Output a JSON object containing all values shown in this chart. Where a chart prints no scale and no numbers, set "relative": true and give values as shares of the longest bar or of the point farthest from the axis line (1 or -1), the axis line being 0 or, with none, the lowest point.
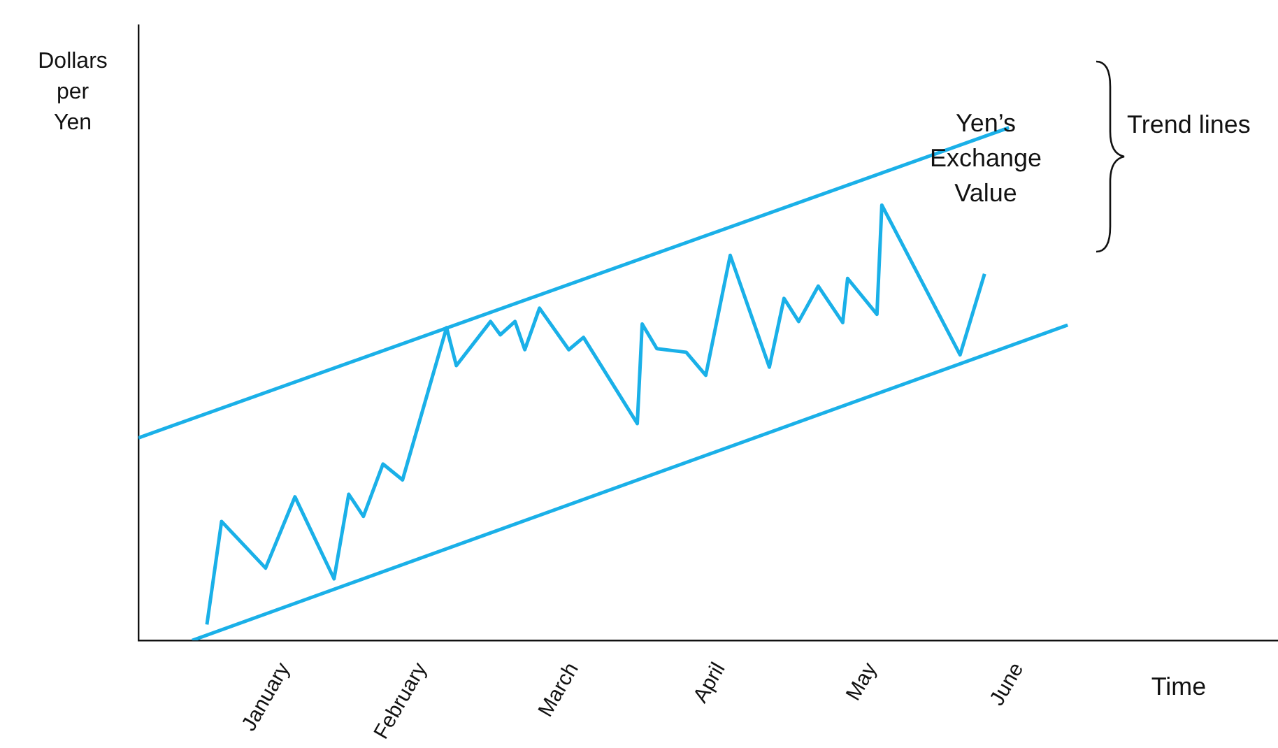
{
  "chart_data": {
    "type": "line",
    "relative": true,
    "ylabel": "Dollars per Yen",
    "xlabel": "Time",
    "annotations": [
      "Trend lines"
    ],
    "xlim": [
      "--01-01",
      "--08-22"
    ],
    "xticks": [
      {
        "value": "--01-31",
        "label": "January"
      },
      {
        "value": "--02-28",
        "label": "February"
      },
      {
        "value": "--03-31",
        "label": "March"
      },
      {
        "value": "--04-30",
        "label": "April"
      },
      {
        "value": "--05-31",
        "label": "May"
      },
      {
        "value": "--06-30",
        "label": "June"
      }
    ],
    "tick_labels": "x",
    "grid": false,
    "legend": false,
    "marker": "none",
    "line_style": "solid",
    "series": [
      {
        "name": "Yen’s Exchange Value",
        "color": "#1ab0e8",
        "x": [
          "--01-15",
          "--01-18",
          "--01-27",
          "--02-02",
          "--02-10",
          "--02-13",
          "--02-16",
          "--02-20",
          "--02-24",
          "--03-05",
          "--03-07",
          "--03-14",
          "--03-16",
          "--03-19",
          "--03-21",
          "--03-24",
          "--03-30",
          "--04-02",
          "--04-13",
          "--04-14",
          "--04-17",
          "--04-23",
          "--04-27",
          "--05-02",
          "--05-10",
          "--05-13",
          "--05-16",
          "--05-20",
          "--05-25",
          "--05-26",
          "--06-01",
          "--06-02",
          "--06-18",
          "--06-23"
        ],
        "values": [
          0.031,
          0.232,
          0.141,
          0.28,
          0.12,
          0.285,
          0.242,
          0.344,
          0.313,
          0.61,
          0.536,
          0.622,
          0.596,
          0.622,
          0.567,
          0.648,
          0.567,
          0.591,
          0.423,
          0.617,
          0.569,
          0.562,
          0.517,
          0.751,
          0.533,
          0.667,
          0.622,
          0.691,
          0.62,
          0.706,
          0.636,
          0.849,
          0.557,
          0.715
        ]
      },
      {
        "color": "#1ab0e8",
        "x": [
          "--01-01",
          "--06-28"
        ],
        "values": [
          0.395,
          1
        ]
      },
      {
        "color": "#1ab0e8",
        "x": [
          "--01-12",
          "--07-10"
        ],
        "values": [
          0,
          0.615
        ]
      }
    ]
  }
}
